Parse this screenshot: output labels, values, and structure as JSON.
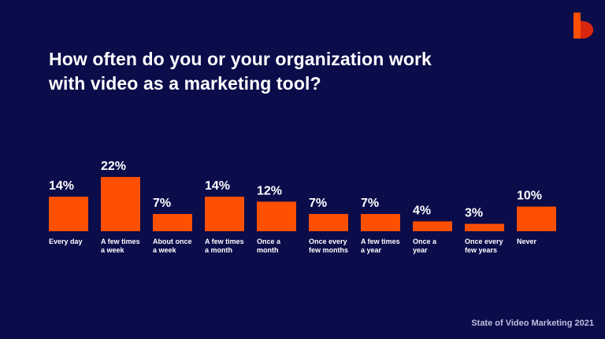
{
  "title_lines": [
    "How often do you or your organization work",
    "with video as a marketing tool?"
  ],
  "footer": "State of Video Marketing 2021",
  "logo": {
    "icon": "b-logo-icon",
    "primary": "#ff4f00",
    "secondary": "#d21f10"
  },
  "chart_data": {
    "type": "bar",
    "title": "How often do you or your organization work with video as a marketing tool?",
    "categories": [
      [
        "Every day"
      ],
      [
        "A few times",
        "a week"
      ],
      [
        "About once",
        "a week"
      ],
      [
        "A few times",
        "a month"
      ],
      [
        "Once a",
        "month"
      ],
      [
        "Once every",
        "few months"
      ],
      [
        "A few times",
        "a year"
      ],
      [
        "Once a",
        "year"
      ],
      [
        "Once every",
        "few years"
      ],
      [
        "Never"
      ]
    ],
    "values": [
      14,
      22,
      7,
      14,
      12,
      7,
      7,
      4,
      3,
      10
    ],
    "value_labels": [
      "14%",
      "22%",
      "7%",
      "14%",
      "12%",
      "7%",
      "7%",
      "4%",
      "3%",
      "10%"
    ],
    "unit": "%",
    "ylim": [
      0,
      22
    ],
    "grid": false,
    "bar_color": "#ff4f00"
  }
}
